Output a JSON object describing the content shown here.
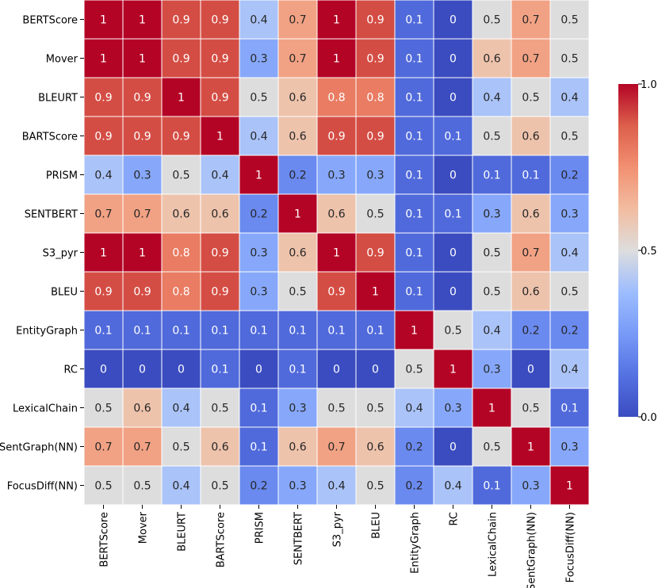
{
  "chart_data": {
    "type": "heatmap",
    "title": "",
    "xlabel": "",
    "ylabel": "",
    "labels": [
      "BERTScore",
      "Mover",
      "BLEURT",
      "BARTScore",
      "PRISM",
      "SENTBERT",
      "S3_pyr",
      "BLEU",
      "EntityGraph",
      "RC",
      "LexicalChain",
      "SentGraph(NN)",
      "FocusDiff(NN)"
    ],
    "values": [
      [
        1,
        1,
        0.9,
        0.9,
        0.4,
        0.7,
        1,
        0.9,
        0.1,
        0,
        0.5,
        0.7,
        0.5
      ],
      [
        1,
        1,
        0.9,
        0.9,
        0.3,
        0.7,
        1,
        0.9,
        0.1,
        0,
        0.6,
        0.7,
        0.5
      ],
      [
        0.9,
        0.9,
        1,
        0.9,
        0.5,
        0.6,
        0.8,
        0.8,
        0.1,
        0,
        0.4,
        0.5,
        0.4
      ],
      [
        0.9,
        0.9,
        0.9,
        1,
        0.4,
        0.6,
        0.9,
        0.9,
        0.1,
        0.1,
        0.5,
        0.6,
        0.5
      ],
      [
        0.4,
        0.3,
        0.5,
        0.4,
        1,
        0.2,
        0.3,
        0.3,
        0.1,
        0,
        0.1,
        0.1,
        0.2
      ],
      [
        0.7,
        0.7,
        0.6,
        0.6,
        0.2,
        1,
        0.6,
        0.5,
        0.1,
        0.1,
        0.3,
        0.6,
        0.3
      ],
      [
        1,
        1,
        0.8,
        0.9,
        0.3,
        0.6,
        1,
        0.9,
        0.1,
        0,
        0.5,
        0.7,
        0.4
      ],
      [
        0.9,
        0.9,
        0.8,
        0.9,
        0.3,
        0.5,
        0.9,
        1,
        0.1,
        0,
        0.5,
        0.6,
        0.5
      ],
      [
        0.1,
        0.1,
        0.1,
        0.1,
        0.1,
        0.1,
        0.1,
        0.1,
        1,
        0.5,
        0.4,
        0.2,
        0.2
      ],
      [
        0,
        0,
        0,
        0.1,
        0,
        0.1,
        0,
        0,
        0.5,
        1,
        0.3,
        0,
        0.4
      ],
      [
        0.5,
        0.6,
        0.4,
        0.5,
        0.1,
        0.3,
        0.5,
        0.5,
        0.4,
        0.3,
        1,
        0.5,
        0.1
      ],
      [
        0.7,
        0.7,
        0.5,
        0.6,
        0.1,
        0.6,
        0.7,
        0.6,
        0.2,
        0,
        0.5,
        1,
        0.3
      ],
      [
        0.5,
        0.5,
        0.4,
        0.5,
        0.2,
        0.3,
        0.4,
        0.5,
        0.2,
        0.4,
        0.1,
        0.3,
        1
      ]
    ],
    "colormap": "coolwarm",
    "vmin": 0,
    "vmax": 1,
    "colorbar_ticks": [
      "0.0",
      "0.5",
      "1.0"
    ]
  }
}
